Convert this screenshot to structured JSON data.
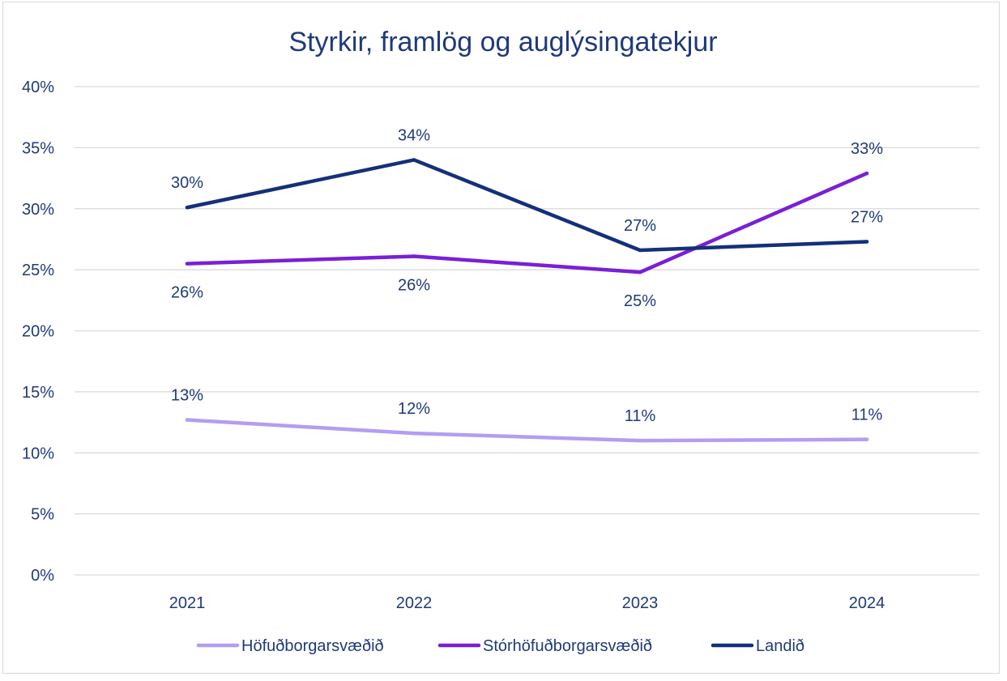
{
  "chart_data": {
    "type": "line",
    "title": "Styrkir, framlög og auglýsingatekjur",
    "categories": [
      "2021",
      "2022",
      "2023",
      "2024"
    ],
    "y_ticks": [
      "0%",
      "5%",
      "10%",
      "15%",
      "20%",
      "25%",
      "30%",
      "35%",
      "40%"
    ],
    "ylim": [
      0,
      40
    ],
    "grid": true,
    "legend_position": "bottom",
    "series": [
      {
        "name": "Höfuðborgarsvæðið",
        "color": "#b39df0",
        "values": [
          12.7,
          11.6,
          11.0,
          11.1
        ],
        "labels": [
          "13%",
          "12%",
          "11%",
          "11%"
        ],
        "label_position": "above"
      },
      {
        "name": "Stórhöfuðborgarsvæðið",
        "color": "#7a1fd6",
        "values": [
          25.5,
          26.1,
          24.8,
          32.9
        ],
        "labels": [
          "26%",
          "26%",
          "25%",
          "33%"
        ],
        "label_position": [
          "below",
          "below",
          "below",
          "above"
        ]
      },
      {
        "name": "Landið",
        "color": "#14307a",
        "values": [
          30.1,
          34.0,
          26.6,
          27.3
        ],
        "labels": [
          "30%",
          "34%",
          "27%",
          "27%"
        ],
        "label_position": "above"
      }
    ]
  }
}
